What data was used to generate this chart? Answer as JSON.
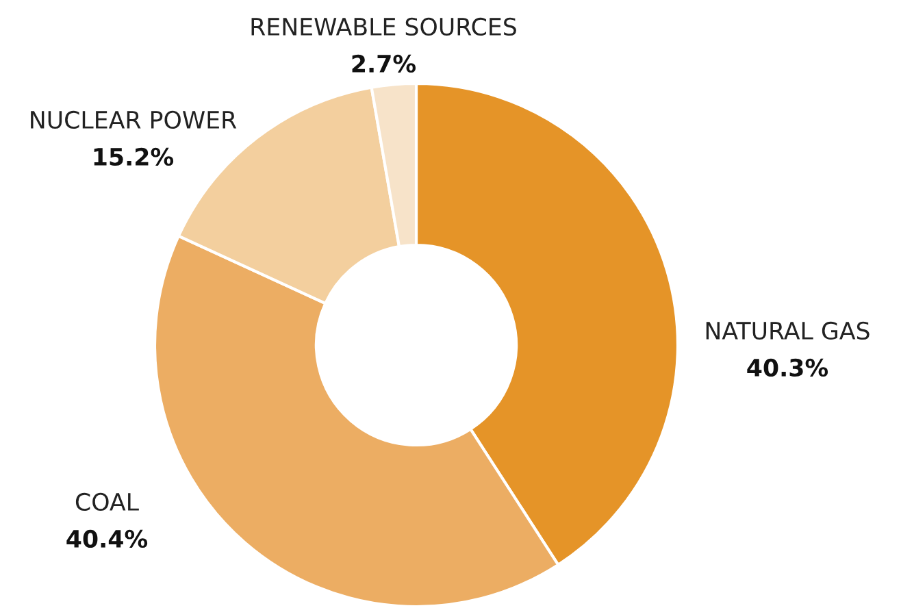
{
  "chart_data": {
    "type": "donut",
    "categories": [
      "NATURAL GAS",
      "COAL",
      "NUCLEAR POWER",
      "RENEWABLE SOURCES"
    ],
    "values": [
      40.3,
      40.4,
      15.2,
      2.7
    ],
    "value_labels": [
      "40.3%",
      "40.4%",
      "15.2%",
      "2.7%"
    ],
    "colors": [
      "#e59428",
      "#ecad63",
      "#f3cf9e",
      "#f7e3c9"
    ],
    "legend": false
  }
}
